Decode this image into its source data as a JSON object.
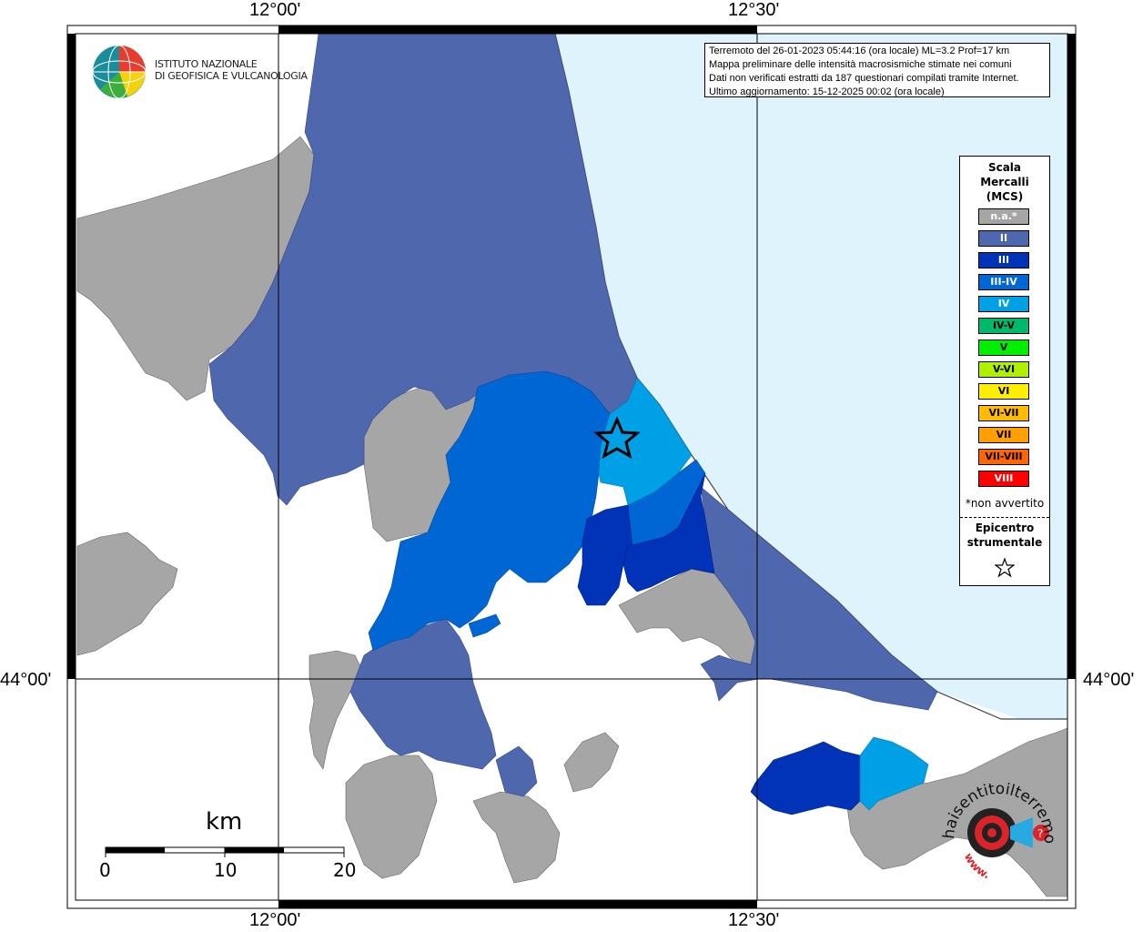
{
  "axes": {
    "top_left": "12°00'",
    "top_right": "12°30'",
    "bottom_left": "12°00'",
    "bottom_right": "12°30'",
    "left_lat": "44°00'",
    "right_lat": "44°00'"
  },
  "info": {
    "line1": "Terremoto del 26-01-2023 05:44:16 (ora locale) ML=3.2 Prof=17 km",
    "line2": "Mappa preliminare delle intensità macrosismiche stimate nei comuni",
    "line3": "Dati non verificati estratti da 187 questionari compilati tramite Internet.",
    "line4": "Ultimo aggiornamento: 15-12-2025 00:02 (ora locale)"
  },
  "logo": {
    "line1": "ISTITUTO NAZIONALE",
    "line2": "DI GEOFISICA E VULCANOLOGIA"
  },
  "legend": {
    "title_line1": "Scala",
    "title_line2": "Mercalli",
    "title_line3": "(MCS)",
    "items": [
      {
        "label": "n.a.*",
        "color": "#a6a6a6",
        "text_color": "#ffffff"
      },
      {
        "label": "II",
        "color": "#4f67ad",
        "text_color": "#ffffff"
      },
      {
        "label": "III",
        "color": "#0033b8",
        "text_color": "#ffffff"
      },
      {
        "label": "III-IV",
        "color": "#0066d4",
        "text_color": "#ffffff"
      },
      {
        "label": "IV",
        "color": "#00a0e6",
        "text_color": "#ffffff"
      },
      {
        "label": "IV-V",
        "color": "#00b86b",
        "text_color": "#000000"
      },
      {
        "label": "V",
        "color": "#00ee00",
        "text_color": "#000000"
      },
      {
        "label": "V-VI",
        "color": "#aef000",
        "text_color": "#000000"
      },
      {
        "label": "VI",
        "color": "#ffee00",
        "text_color": "#000000"
      },
      {
        "label": "VI-VII",
        "color": "#ffbb00",
        "text_color": "#000000"
      },
      {
        "label": "VII",
        "color": "#ffa000",
        "text_color": "#000000"
      },
      {
        "label": "VII-VIII",
        "color": "#ff6600",
        "text_color": "#000000"
      },
      {
        "label": "VIII",
        "color": "#ff0000",
        "text_color": "#ffffff"
      }
    ],
    "note": "*non avvertito",
    "epicenter_line1": "Epicentro",
    "epicenter_line2": "strumentale"
  },
  "scale_bar": {
    "title": "km",
    "ticks": [
      "0",
      "10",
      "20"
    ]
  },
  "website_logo": {
    "text": "haisentitoilterremoto.it",
    "url_text": "www."
  },
  "colors": {
    "sea": "#dff3fd",
    "na": "#a6a6a6",
    "ii": "#4f67ad",
    "iii": "#0033b8",
    "iii_iv": "#0066d4",
    "iv": "#00a0e6"
  }
}
